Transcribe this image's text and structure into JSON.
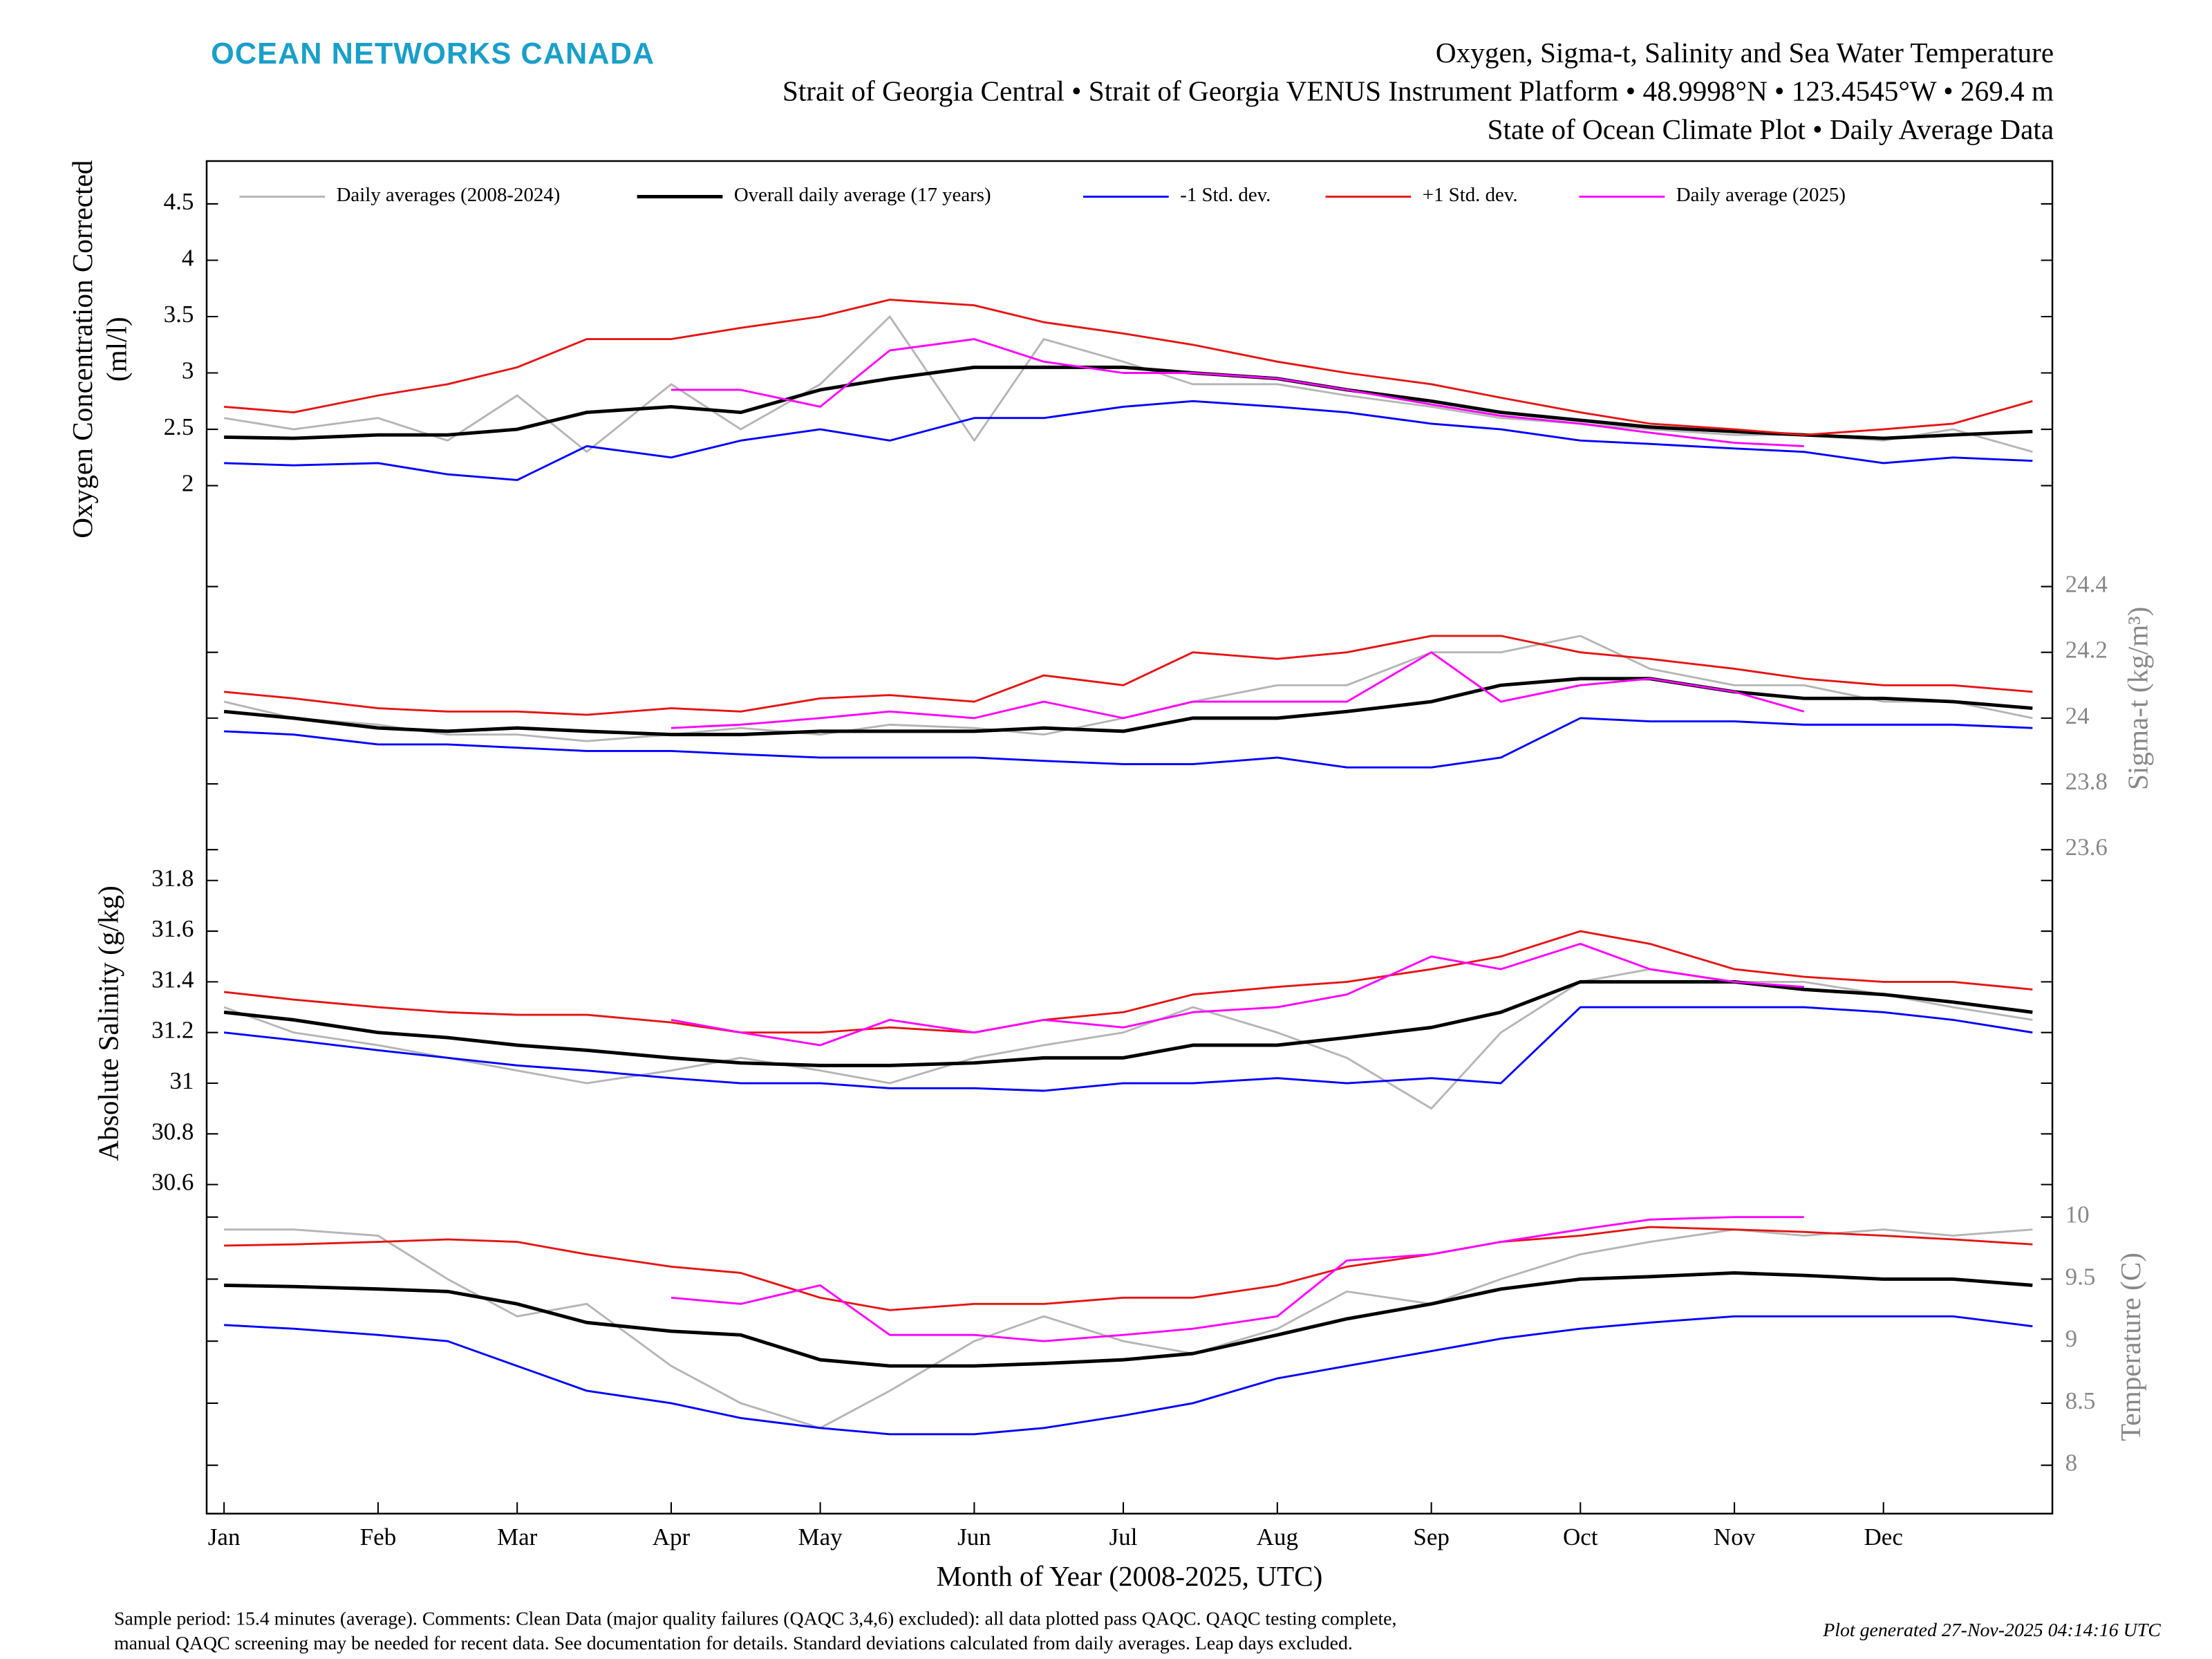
{
  "header": {
    "logo": "OCEAN NETWORKS CANADA",
    "title": "Oxygen, Sigma-t, Salinity and Sea Water Temperature",
    "subtitle": "Strait of Georgia Central • Strait of Georgia VENUS Instrument Platform • 48.9998°N • 123.4545°W • 269.4 m",
    "subtitle2": "State of Ocean Climate Plot • Daily Average Data"
  },
  "footer": {
    "line1": "Sample period: 15.4 minutes (average). Comments: Clean Data (major quality failures (QAQC 3,4,6) excluded): all data plotted pass QAQC. QAQC testing complete,",
    "line2": "manual QAQC screening may be needed for recent data. See documentation for details. Standard deviations calculated from daily averages. Leap days excluded.",
    "generated": "Plot generated 27-Nov-2025 04:14:16 UTC"
  },
  "chart_data": [
    {
      "type": "line",
      "ylabel": [
        "Oxygen Concentration Corrected",
        "(ml/l)"
      ],
      "yaxis_side": "left",
      "ylim": [
        1.63,
        4.88
      ],
      "yticks": [
        2,
        2.5,
        3,
        3.5,
        4,
        4.5
      ],
      "xlim": [
        -2.5,
        369
      ],
      "legend": "top",
      "x": [
        1,
        15,
        32,
        46,
        60,
        74,
        91,
        105,
        121,
        135,
        152,
        166,
        182,
        196,
        213,
        227,
        244,
        258,
        274,
        288,
        305,
        319,
        335,
        349,
        365
      ],
      "series": [
        {
          "name": "Daily averages (2008-2024)",
          "color": "#b5b5b5",
          "values": [
            2.6,
            2.5,
            2.6,
            2.4,
            2.8,
            2.3,
            2.9,
            2.5,
            2.9,
            3.5,
            2.4,
            3.3,
            3.1,
            2.9,
            2.9,
            2.8,
            2.7,
            2.6,
            2.55,
            2.5,
            2.45,
            2.45,
            2.4,
            2.5,
            2.3
          ]
        },
        {
          "name": "Overall daily average (17 years)",
          "color": "#000000",
          "values": [
            2.43,
            2.42,
            2.45,
            2.45,
            2.5,
            2.65,
            2.7,
            2.65,
            2.85,
            2.95,
            3.05,
            3.05,
            3.05,
            3.0,
            2.95,
            2.85,
            2.75,
            2.65,
            2.58,
            2.52,
            2.48,
            2.45,
            2.42,
            2.45,
            2.48
          ]
        },
        {
          "name": "-1 Std. dev.",
          "color": "#0000ff",
          "values": [
            2.2,
            2.18,
            2.2,
            2.1,
            2.05,
            2.35,
            2.25,
            2.4,
            2.5,
            2.4,
            2.6,
            2.6,
            2.7,
            2.75,
            2.7,
            2.65,
            2.55,
            2.5,
            2.4,
            2.37,
            2.33,
            2.3,
            2.2,
            2.25,
            2.22
          ]
        },
        {
          "name": "+1 Std. dev.",
          "color": "#e51414",
          "values": [
            2.7,
            2.65,
            2.8,
            2.9,
            3.05,
            3.3,
            3.3,
            3.4,
            3.5,
            3.65,
            3.6,
            3.45,
            3.35,
            3.25,
            3.1,
            3.0,
            2.9,
            2.78,
            2.65,
            2.55,
            2.5,
            2.45,
            2.5,
            2.55,
            2.75
          ]
        },
        {
          "name": "Daily average (2025)",
          "color": "#ff00ff",
          "values": [
            null,
            null,
            null,
            null,
            null,
            null,
            2.85,
            2.85,
            2.7,
            3.2,
            3.3,
            3.1,
            3.0,
            3.0,
            2.95,
            2.85,
            2.72,
            2.62,
            2.55,
            2.47,
            2.38,
            2.35,
            null,
            null,
            null
          ]
        }
      ]
    },
    {
      "type": "line",
      "ylabel": [
        "Sigma-t (kg/m³)"
      ],
      "yaxis_side": "right",
      "ylim": [
        23.54,
        24.58
      ],
      "yticks": [
        23.6,
        23.8,
        24,
        24.2,
        24.4
      ],
      "xlim": [
        -2.5,
        369
      ],
      "x": [
        1,
        15,
        32,
        46,
        60,
        74,
        91,
        105,
        121,
        135,
        152,
        166,
        182,
        196,
        213,
        227,
        244,
        258,
        274,
        288,
        305,
        319,
        335,
        349,
        365
      ],
      "series": [
        {
          "color": "#b5b5b5",
          "values": [
            24.05,
            24.0,
            23.98,
            23.95,
            23.95,
            23.93,
            23.95,
            23.97,
            23.95,
            23.98,
            23.97,
            23.95,
            24.0,
            24.05,
            24.1,
            24.1,
            24.2,
            24.2,
            24.25,
            24.15,
            24.1,
            24.1,
            24.05,
            24.05,
            24.0
          ]
        },
        {
          "color": "#000000",
          "values": [
            24.02,
            24.0,
            23.97,
            23.96,
            23.97,
            23.96,
            23.95,
            23.95,
            23.96,
            23.96,
            23.96,
            23.97,
            23.96,
            24.0,
            24.0,
            24.02,
            24.05,
            24.1,
            24.12,
            24.12,
            24.08,
            24.06,
            24.06,
            24.05,
            24.03
          ]
        },
        {
          "color": "#0000ff",
          "values": [
            23.96,
            23.95,
            23.92,
            23.92,
            23.91,
            23.9,
            23.9,
            23.89,
            23.88,
            23.88,
            23.88,
            23.87,
            23.86,
            23.86,
            23.88,
            23.85,
            23.85,
            23.88,
            24.0,
            23.99,
            23.99,
            23.98,
            23.98,
            23.98,
            23.97
          ]
        },
        {
          "color": "#e51414",
          "values": [
            24.08,
            24.06,
            24.03,
            24.02,
            24.02,
            24.01,
            24.03,
            24.02,
            24.06,
            24.07,
            24.05,
            24.13,
            24.1,
            24.2,
            24.18,
            24.2,
            24.25,
            24.25,
            24.2,
            24.18,
            24.15,
            24.12,
            24.1,
            24.1,
            24.08
          ]
        },
        {
          "color": "#ff00ff",
          "values": [
            null,
            null,
            null,
            null,
            null,
            null,
            23.97,
            23.98,
            24.0,
            24.02,
            24.0,
            24.05,
            24.0,
            24.05,
            24.05,
            24.05,
            24.2,
            24.05,
            24.1,
            24.12,
            24.08,
            24.02,
            null,
            null,
            null
          ]
        }
      ]
    },
    {
      "type": "line",
      "ylabel": [
        "Absolute Salinity (g/kg)"
      ],
      "yaxis_side": "left",
      "ylim": [
        30.55,
        31.9
      ],
      "yticks": [
        30.6,
        30.8,
        31,
        31.2,
        31.4,
        31.6,
        31.8
      ],
      "xlim": [
        -2.5,
        369
      ],
      "x": [
        1,
        15,
        32,
        46,
        60,
        74,
        91,
        105,
        121,
        135,
        152,
        166,
        182,
        196,
        213,
        227,
        244,
        258,
        274,
        288,
        305,
        319,
        335,
        349,
        365
      ],
      "series": [
        {
          "color": "#b5b5b5",
          "values": [
            31.3,
            31.2,
            31.15,
            31.1,
            31.05,
            31.0,
            31.05,
            31.1,
            31.05,
            31.0,
            31.1,
            31.15,
            31.2,
            31.3,
            31.2,
            31.1,
            30.9,
            31.2,
            31.4,
            31.45,
            31.4,
            31.4,
            31.35,
            31.3,
            31.25
          ]
        },
        {
          "color": "#000000",
          "values": [
            31.28,
            31.25,
            31.2,
            31.18,
            31.15,
            31.13,
            31.1,
            31.08,
            31.07,
            31.07,
            31.08,
            31.1,
            31.1,
            31.15,
            31.15,
            31.18,
            31.22,
            31.28,
            31.4,
            31.4,
            31.4,
            31.37,
            31.35,
            31.32,
            31.28
          ]
        },
        {
          "color": "#0000ff",
          "values": [
            31.2,
            31.17,
            31.13,
            31.1,
            31.07,
            31.05,
            31.02,
            31.0,
            31.0,
            30.98,
            30.98,
            30.97,
            31.0,
            31.0,
            31.02,
            31.0,
            31.02,
            31.0,
            31.3,
            31.3,
            31.3,
            31.3,
            31.28,
            31.25,
            31.2
          ]
        },
        {
          "color": "#e51414",
          "values": [
            31.36,
            31.33,
            31.3,
            31.28,
            31.27,
            31.27,
            31.24,
            31.2,
            31.2,
            31.22,
            31.2,
            31.25,
            31.28,
            31.35,
            31.38,
            31.4,
            31.45,
            31.5,
            31.6,
            31.55,
            31.45,
            31.42,
            31.4,
            31.4,
            31.37
          ]
        },
        {
          "color": "#ff00ff",
          "values": [
            null,
            null,
            null,
            null,
            null,
            null,
            31.25,
            31.2,
            31.15,
            31.25,
            31.2,
            31.25,
            31.22,
            31.28,
            31.3,
            31.35,
            31.5,
            31.45,
            31.55,
            31.45,
            31.4,
            31.38,
            null,
            null,
            null
          ]
        }
      ]
    },
    {
      "type": "line",
      "ylabel": [
        "Temperature (C)"
      ],
      "yaxis_side": "right",
      "ylim": [
        7.61,
        10.16
      ],
      "yticks": [
        8,
        8.5,
        9,
        9.5,
        10
      ],
      "xlim": [
        -2.5,
        369
      ],
      "xlabel": "Month of Year (2008-2025, UTC)",
      "xticks": [
        {
          "value": 1,
          "label": "Jan"
        },
        {
          "value": 32,
          "label": "Feb"
        },
        {
          "value": 60,
          "label": "Mar"
        },
        {
          "value": 91,
          "label": "Apr"
        },
        {
          "value": 121,
          "label": "May"
        },
        {
          "value": 152,
          "label": "Jun"
        },
        {
          "value": 182,
          "label": "Jul"
        },
        {
          "value": 213,
          "label": "Aug"
        },
        {
          "value": 244,
          "label": "Sep"
        },
        {
          "value": 274,
          "label": "Oct"
        },
        {
          "value": 305,
          "label": "Nov"
        },
        {
          "value": 335,
          "label": "Dec"
        }
      ],
      "x": [
        1,
        15,
        32,
        46,
        60,
        74,
        91,
        105,
        121,
        135,
        152,
        166,
        182,
        196,
        213,
        227,
        244,
        258,
        274,
        288,
        305,
        319,
        335,
        349,
        365
      ],
      "series": [
        {
          "color": "#b5b5b5",
          "values": [
            9.9,
            9.9,
            9.85,
            9.5,
            9.2,
            9.3,
            8.8,
            8.5,
            8.3,
            8.6,
            9.0,
            9.2,
            9.0,
            8.9,
            9.1,
            9.4,
            9.3,
            9.5,
            9.7,
            9.8,
            9.9,
            9.85,
            9.9,
            9.85,
            9.9
          ]
        },
        {
          "color": "#000000",
          "values": [
            9.45,
            9.44,
            9.42,
            9.4,
            9.3,
            9.15,
            9.08,
            9.05,
            8.85,
            8.8,
            8.8,
            8.82,
            8.85,
            8.9,
            9.05,
            9.18,
            9.3,
            9.42,
            9.5,
            9.52,
            9.55,
            9.53,
            9.5,
            9.5,
            9.45
          ]
        },
        {
          "color": "#0000ff",
          "values": [
            9.13,
            9.1,
            9.05,
            9.0,
            8.8,
            8.6,
            8.5,
            8.38,
            8.3,
            8.25,
            8.25,
            8.3,
            8.4,
            8.5,
            8.7,
            8.8,
            8.92,
            9.02,
            9.1,
            9.15,
            9.2,
            9.2,
            9.2,
            9.2,
            9.12
          ]
        },
        {
          "color": "#e51414",
          "values": [
            9.77,
            9.78,
            9.8,
            9.82,
            9.8,
            9.7,
            9.6,
            9.55,
            9.35,
            9.25,
            9.3,
            9.3,
            9.35,
            9.35,
            9.45,
            9.6,
            9.7,
            9.8,
            9.85,
            9.92,
            9.9,
            9.88,
            9.85,
            9.82,
            9.78
          ]
        },
        {
          "color": "#ff00ff",
          "values": [
            null,
            null,
            null,
            null,
            null,
            null,
            9.35,
            9.3,
            9.45,
            9.05,
            9.05,
            9.0,
            9.05,
            9.1,
            9.2,
            9.65,
            9.7,
            9.8,
            9.9,
            9.98,
            10.0,
            10.0,
            null,
            null,
            null
          ]
        }
      ]
    }
  ]
}
